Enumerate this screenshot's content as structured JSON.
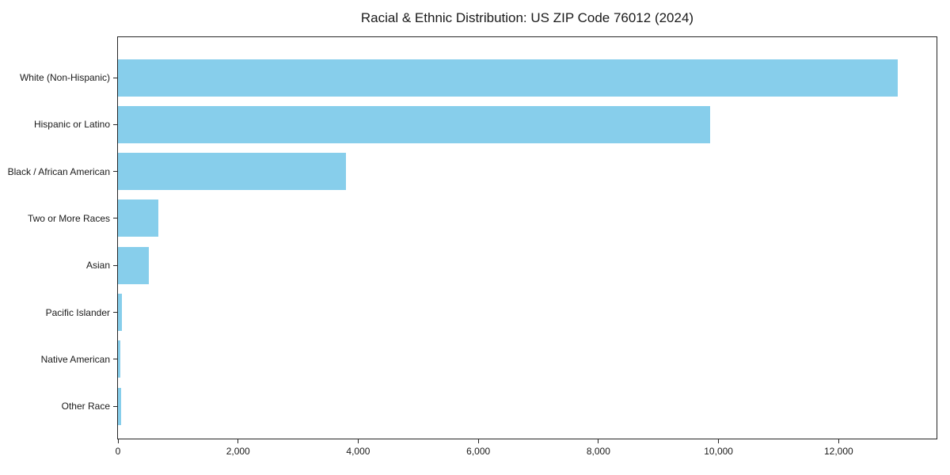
{
  "chart_data": {
    "type": "bar",
    "orientation": "horizontal",
    "title": "Racial & Ethnic Distribution: US ZIP Code 76012 (2024)",
    "xlabel": "",
    "ylabel": "",
    "categories": [
      "White (Non-Hispanic)",
      "Hispanic or Latino",
      "Black / African American",
      "Two or More Races",
      "Asian",
      "Pacific Islander",
      "Native American",
      "Other Race"
    ],
    "values": [
      12985,
      9855,
      3790,
      670,
      515,
      65,
      45,
      50
    ],
    "xlim": [
      0,
      13630
    ],
    "x_ticks": [
      0,
      2000,
      4000,
      6000,
      8000,
      10000,
      12000
    ],
    "x_tick_labels": [
      "0",
      "2,000",
      "4,000",
      "6,000",
      "8,000",
      "10,000",
      "12,000"
    ],
    "bar_color": "#87CEEB",
    "background_color": "#ffffff",
    "grid": false,
    "legend": null
  }
}
